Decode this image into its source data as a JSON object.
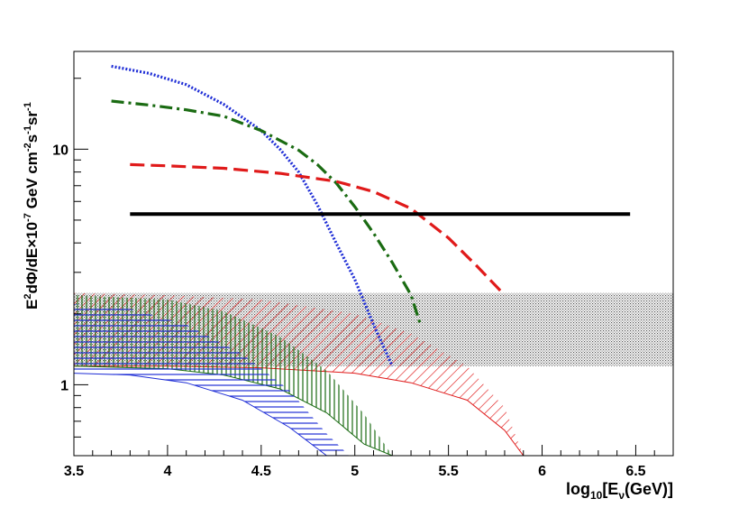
{
  "chart_data": {
    "type": "line",
    "x_axis": {
      "label_main": "log",
      "label_sub": "10",
      "label_rest": "[E",
      "label_nu": "ν",
      "label_end": "(GeV)]",
      "range": [
        3.5,
        6.7
      ],
      "ticks": [
        3.5,
        4,
        4.5,
        5,
        5.5,
        6,
        6.5
      ],
      "tick_labels": [
        "3.5",
        "4",
        "4.5",
        "5",
        "5.5",
        "6",
        "6.5"
      ]
    },
    "y_axis": {
      "label_parts": [
        "E",
        "2",
        "dΦ/dE×10",
        "-7",
        " GeV cm",
        "-2",
        "s",
        "-1",
        "sr",
        "-1"
      ],
      "scale": "log",
      "range": [
        0.5,
        26
      ],
      "ticks": [
        1,
        10
      ],
      "tick_labels": [
        "1",
        "10"
      ]
    },
    "series": [
      {
        "style": "dotted",
        "color": "#1f2ed6",
        "x": [
          3.7,
          3.9,
          4.1,
          4.3,
          4.5,
          4.6,
          4.7,
          4.8,
          4.9,
          5.0,
          5.1,
          5.2
        ],
        "y": [
          22.5,
          21.0,
          18.8,
          15.5,
          12.0,
          10.0,
          8.0,
          5.8,
          4.0,
          2.8,
          1.8,
          1.2
        ]
      },
      {
        "style": "dash-dot",
        "color": "#1a6b12",
        "x": [
          3.7,
          3.9,
          4.1,
          4.3,
          4.5,
          4.7,
          4.8,
          4.9,
          5.0,
          5.1,
          5.2,
          5.3,
          5.35
        ],
        "y": [
          16.0,
          15.4,
          14.7,
          13.8,
          12.0,
          9.9,
          8.6,
          7.2,
          5.7,
          4.4,
          3.3,
          2.4,
          1.8
        ]
      },
      {
        "style": "dashed",
        "color": "#e01a1a",
        "x": [
          3.8,
          4.0,
          4.3,
          4.6,
          4.9,
          5.1,
          5.3,
          5.5,
          5.65,
          5.8
        ],
        "y": [
          8.6,
          8.5,
          8.3,
          7.9,
          7.3,
          6.6,
          5.6,
          4.2,
          3.2,
          2.4
        ]
      },
      {
        "style": "solid",
        "color": "#000000",
        "x": [
          3.8,
          6.47
        ],
        "y": [
          5.3,
          5.3
        ]
      }
    ],
    "bands": [
      {
        "pattern": "dotted-grey",
        "color": "#555555",
        "x": [
          3.5,
          6.7
        ],
        "y_low": [
          1.2,
          1.2
        ],
        "y_high": [
          2.45,
          2.45
        ]
      },
      {
        "pattern": "diagonal-hatch",
        "color": "#e01a1a",
        "x": [
          3.5,
          4.0,
          4.5,
          5.0,
          5.3,
          5.6,
          5.8,
          5.9
        ],
        "y_low": [
          1.2,
          1.2,
          1.18,
          1.12,
          1.02,
          0.86,
          0.64,
          0.5
        ],
        "y_high": [
          2.45,
          2.4,
          2.3,
          2.0,
          1.65,
          1.2,
          0.8,
          0.5
        ]
      },
      {
        "pattern": "vertical-hatch",
        "color": "#1a6b12",
        "x": [
          3.5,
          4.0,
          4.3,
          4.6,
          4.85,
          5.05,
          5.2
        ],
        "y_low": [
          1.2,
          1.17,
          1.1,
          0.96,
          0.76,
          0.56,
          0.5
        ],
        "y_high": [
          2.4,
          2.3,
          2.05,
          1.6,
          1.15,
          0.75,
          0.5
        ]
      },
      {
        "pattern": "horizontal-lines",
        "color": "#1f2ed6",
        "x": [
          3.5,
          3.8,
          4.1,
          4.4,
          4.65,
          4.85,
          4.97
        ],
        "y_low": [
          1.12,
          1.1,
          1.02,
          0.86,
          0.66,
          0.5,
          0.5
        ],
        "y_high": [
          2.2,
          2.1,
          1.8,
          1.35,
          0.95,
          0.62,
          0.5
        ]
      }
    ]
  }
}
